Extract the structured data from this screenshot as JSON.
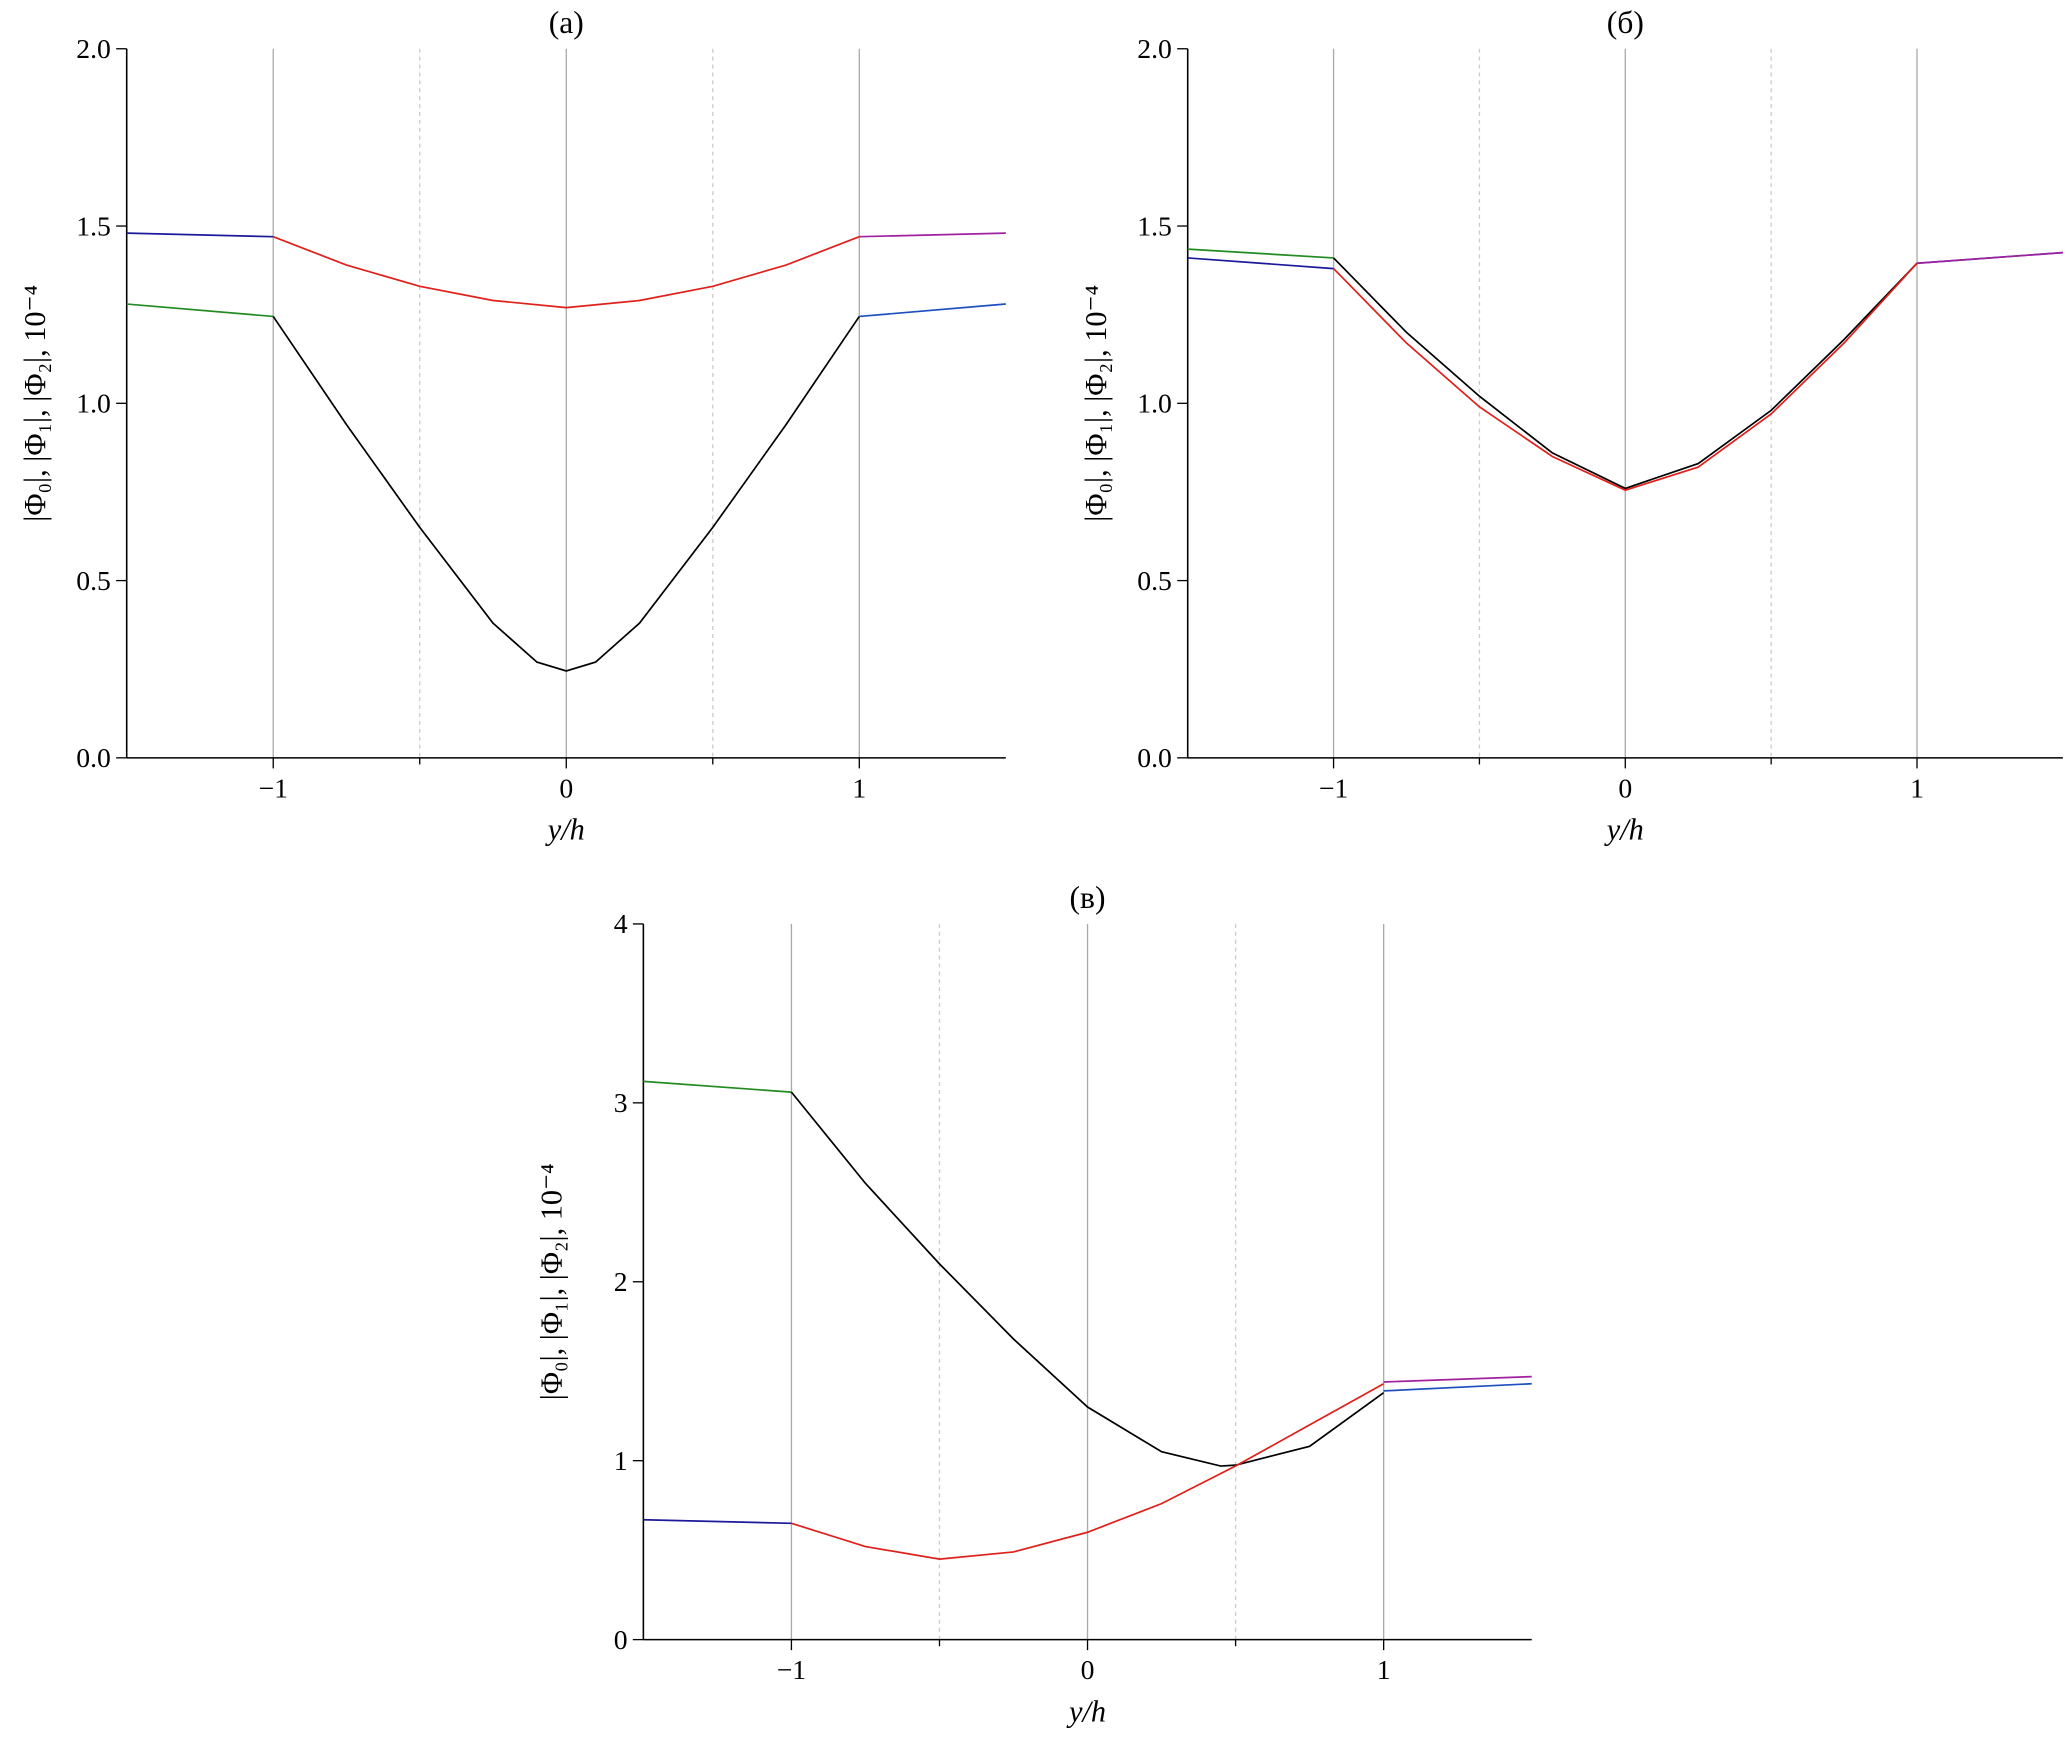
{
  "chart_data": [
    {
      "type": "line",
      "title": "(a)",
      "x_label": "y/h",
      "y_label": "|Φ₀|, |Φ₁|, |Φ₂|, 10⁻⁴",
      "xlim": [
        -1.5,
        1.5
      ],
      "ylim": [
        0,
        2
      ],
      "xticks": [
        {
          "value": -1,
          "label": "−1"
        },
        0,
        1
      ],
      "yticks": [
        {
          "value": 0,
          "label": "0.0"
        },
        0.5,
        {
          "value": 1,
          "label": "1.0"
        },
        1.5,
        {
          "value": 2,
          "label": "2.0"
        }
      ],
      "minor_grid_x": [
        -0.5,
        0.5
      ],
      "series": [
        {
          "color": "#1a1a9a",
          "x": [
            -1.5,
            -1
          ],
          "values": [
            1.48,
            1.47
          ]
        },
        {
          "color": "#228b22",
          "x": [
            -1.5,
            -1
          ],
          "values": [
            1.28,
            1.245
          ]
        },
        {
          "color": "#e0201a",
          "x": [
            -1,
            -0.75,
            -0.5,
            -0.25,
            0,
            0.25,
            0.5,
            0.75,
            1
          ],
          "values": [
            1.47,
            1.39,
            1.33,
            1.29,
            1.27,
            1.29,
            1.33,
            1.39,
            1.47
          ]
        },
        {
          "color": "#000000",
          "x": [
            -1,
            -0.75,
            -0.5,
            -0.25,
            -0.1,
            0,
            0.1,
            0.25,
            0.5,
            0.75,
            1
          ],
          "values": [
            1.245,
            0.94,
            0.65,
            0.38,
            0.27,
            0.245,
            0.27,
            0.38,
            0.65,
            0.94,
            1.245
          ]
        },
        {
          "color": "#a020a0",
          "x": [
            1,
            1.5
          ],
          "values": [
            1.47,
            1.48
          ]
        },
        {
          "color": "#1f4fbf",
          "x": [
            1,
            1.5
          ],
          "values": [
            1.245,
            1.28
          ]
        }
      ]
    },
    {
      "type": "line",
      "title": "(б)",
      "x_label": "y/h",
      "y_label": "|Φ₀|, |Φ₁|, |Φ₂|, 10⁻⁴",
      "xlim": [
        -1.5,
        1.5
      ],
      "ylim": [
        0,
        2
      ],
      "xticks": [
        {
          "value": -1,
          "label": "−1"
        },
        0,
        1
      ],
      "yticks": [
        {
          "value": 0,
          "label": "0.0"
        },
        0.5,
        {
          "value": 1,
          "label": "1.0"
        },
        1.5,
        {
          "value": 2,
          "label": "2.0"
        }
      ],
      "minor_grid_x": [
        -0.5,
        0.5
      ],
      "series": [
        {
          "color": "#228b22",
          "x": [
            -1.5,
            -1
          ],
          "values": [
            1.435,
            1.41
          ]
        },
        {
          "color": "#1a1a9a",
          "x": [
            -1.5,
            -1
          ],
          "values": [
            1.41,
            1.38
          ]
        },
        {
          "color": "#000000",
          "x": [
            -1,
            -0.75,
            -0.5,
            -0.25,
            0,
            0.25,
            0.5,
            0.75,
            1
          ],
          "values": [
            1.41,
            1.2,
            1.02,
            0.86,
            0.76,
            0.83,
            0.98,
            1.18,
            1.395
          ]
        },
        {
          "color": "#e0201a",
          "x": [
            -1,
            -0.75,
            -0.5,
            -0.25,
            0,
            0.25,
            0.5,
            0.75,
            1
          ],
          "values": [
            1.38,
            1.17,
            0.99,
            0.85,
            0.755,
            0.82,
            0.97,
            1.17,
            1.395
          ]
        },
        {
          "color": "#1f4fbf",
          "x": [
            1,
            1.5
          ],
          "values": [
            1.395,
            1.425
          ]
        },
        {
          "color": "#a020a0",
          "x": [
            1,
            1.5
          ],
          "values": [
            1.395,
            1.425
          ]
        }
      ]
    },
    {
      "type": "line",
      "title": "(в)",
      "x_label": "y/h",
      "y_label": "|Φ₀|, |Φ₁|, |Φ₂|, 10⁻⁴",
      "xlim": [
        -1.5,
        1.5
      ],
      "ylim": [
        0,
        4
      ],
      "xticks": [
        {
          "value": -1,
          "label": "−1"
        },
        0,
        1
      ],
      "yticks": [
        0,
        1,
        2,
        3,
        4
      ],
      "minor_grid_x": [
        -0.5,
        0.5
      ],
      "series": [
        {
          "color": "#228b22",
          "x": [
            -1.5,
            -1
          ],
          "values": [
            3.12,
            3.06
          ]
        },
        {
          "color": "#1a1a9a",
          "x": [
            -1.5,
            -1
          ],
          "values": [
            0.67,
            0.65
          ]
        },
        {
          "color": "#000000",
          "x": [
            -1,
            -0.75,
            -0.5,
            -0.25,
            0,
            0.25,
            0.45,
            0.5,
            0.75,
            1
          ],
          "values": [
            3.06,
            2.55,
            2.1,
            1.68,
            1.3,
            1.05,
            0.97,
            0.975,
            1.08,
            1.38
          ]
        },
        {
          "color": "#e0201a",
          "x": [
            -1,
            -0.75,
            -0.5,
            -0.25,
            0,
            0.25,
            0.5,
            0.75,
            1
          ],
          "values": [
            0.65,
            0.52,
            0.45,
            0.49,
            0.6,
            0.76,
            0.97,
            1.2,
            1.43
          ]
        },
        {
          "color": "#a020a0",
          "x": [
            1,
            1.5
          ],
          "values": [
            1.44,
            1.47
          ]
        },
        {
          "color": "#1f4fbf",
          "x": [
            1,
            1.5
          ],
          "values": [
            1.39,
            1.43
          ]
        }
      ]
    }
  ]
}
